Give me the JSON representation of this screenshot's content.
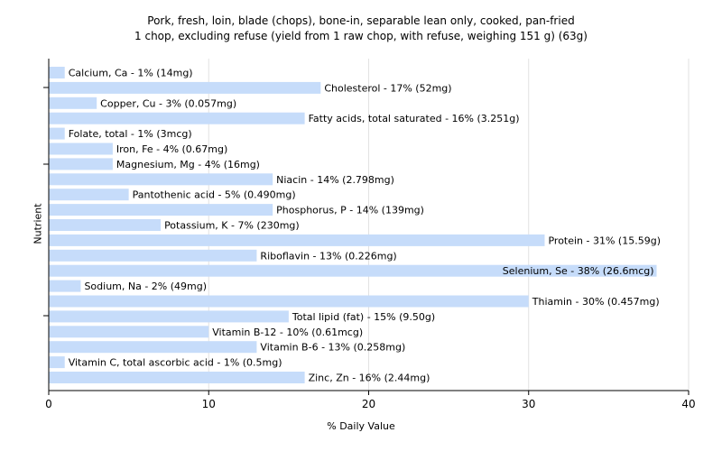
{
  "chart_data": {
    "type": "bar",
    "orientation": "horizontal",
    "title": "Pork, fresh, loin, blade (chops), bone-in, separable lean only, cooked, pan-fried",
    "subtitle": "1 chop, excluding refuse (yield from 1 raw chop, with refuse, weighing 151 g) (63g)",
    "xlabel": "% Daily Value",
    "ylabel": "Nutrient",
    "xlim": [
      0,
      40
    ],
    "xticks": [
      0,
      10,
      20,
      30,
      40
    ],
    "grid": true,
    "bar_color": "#c6dcfa",
    "categories": [
      "Calcium, Ca",
      "Cholesterol",
      "Copper, Cu",
      "Fatty acids, total saturated",
      "Folate, total",
      "Iron, Fe",
      "Magnesium, Mg",
      "Niacin",
      "Pantothenic acid",
      "Phosphorus, P",
      "Potassium, K",
      "Protein",
      "Riboflavin",
      "Selenium, Se",
      "Sodium, Na",
      "Thiamin",
      "Total lipid (fat)",
      "Vitamin B-12",
      "Vitamin B-6",
      "Vitamin C, total ascorbic acid",
      "Zinc, Zn"
    ],
    "values": [
      1,
      17,
      3,
      16,
      1,
      4,
      4,
      14,
      5,
      14,
      7,
      31,
      13,
      38,
      2,
      30,
      15,
      10,
      13,
      1,
      16
    ],
    "labels": [
      "Calcium, Ca - 1% (14mg)",
      "Cholesterol - 17% (52mg)",
      "Copper, Cu - 3% (0.057mg)",
      "Fatty acids, total saturated - 16% (3.251g)",
      "Folate, total - 1% (3mcg)",
      "Iron, Fe - 4% (0.67mg)",
      "Magnesium, Mg - 4% (16mg)",
      "Niacin - 14% (2.798mg)",
      "Pantothenic acid - 5% (0.490mg)",
      "Phosphorus, P - 14% (139mg)",
      "Potassium, K - 7% (230mg)",
      "Protein - 31% (15.59g)",
      "Riboflavin - 13% (0.226mg)",
      "Selenium, Se - 38% (26.6mcg)",
      "Sodium, Na - 2% (49mg)",
      "Thiamin - 30% (0.457mg)",
      "Total lipid (fat) - 15% (9.50g)",
      "Vitamin B-12 - 10% (0.61mcg)",
      "Vitamin B-6 - 13% (0.258mg)",
      "Vitamin C, total ascorbic acid - 1% (0.5mg)",
      "Zinc, Zn - 16% (2.44mg)"
    ]
  }
}
